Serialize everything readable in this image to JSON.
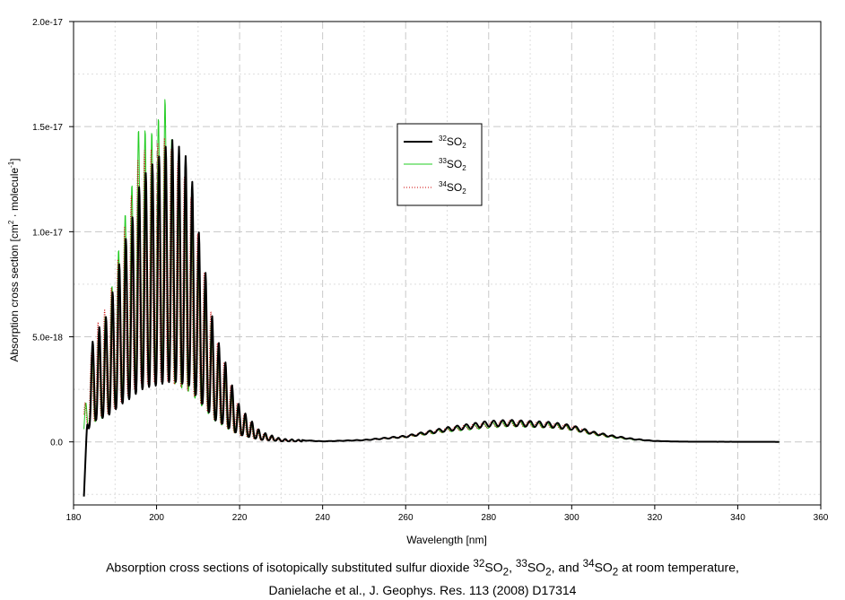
{
  "chart_data": {
    "type": "line",
    "xlabel": "Wavelength [nm]",
    "ylabel": {
      "text_before": "Absorption cross section [cm",
      "sup1": "2",
      "text_mid": " · molecule",
      "sup2": "-1",
      "text_after": "]"
    },
    "xlim": [
      180,
      360
    ],
    "ylim": [
      -3e-18,
      2e-17
    ],
    "x_ticks": [
      "180",
      "200",
      "220",
      "240",
      "260",
      "280",
      "300",
      "320",
      "340",
      "360"
    ],
    "x_tick_values": [
      180,
      200,
      220,
      240,
      260,
      280,
      300,
      320,
      340,
      360
    ],
    "y_ticks": [
      "0.0",
      "5.0e-18",
      "1.0e-17",
      "1.5e-17",
      "2.0e-17"
    ],
    "y_tick_values": [
      0,
      5e-18,
      1e-17,
      1.5e-17,
      2e-17
    ],
    "grid": true,
    "legend_position": "center-top",
    "series": [
      {
        "sup": "32",
        "base": "SO",
        "sub": "2",
        "color": "#000000",
        "style": "solid",
        "width": 2,
        "envelope": {
          "x": [
            182.5,
            184,
            186,
            188,
            190,
            192,
            194,
            196,
            198,
            200,
            202,
            204,
            206,
            208,
            210,
            212,
            214,
            216,
            218,
            220,
            222,
            225,
            230,
            240,
            250,
            260,
            270,
            280,
            285,
            290,
            295,
            300,
            305,
            310,
            315,
            320,
            325,
            330,
            340,
            350
          ],
          "y": [
            -2.6e-18,
            4.5e-18,
            5.4e-18,
            6e-18,
            7.6e-18,
            9.3e-18,
            1.05e-17,
            1.23e-17,
            1.3e-17,
            1.34e-17,
            1.4e-17,
            1.44e-17,
            1.39e-17,
            1.33e-17,
            1.02e-17,
            7.8e-18,
            5.2e-18,
            4.2e-18,
            2.8e-18,
            1.7e-18,
            1.2e-18,
            5e-19,
            1.5e-19,
            3e-20,
            1e-19,
            3e-19,
            7e-19,
            1e-18,
            1.05e-18,
            1e-18,
            9.5e-19,
            8e-19,
            5e-19,
            3e-19,
            1.5e-19,
            5e-20,
            2e-20,
            1e-20,
            5e-21,
            0
          ]
        }
      },
      {
        "sup": "33",
        "base": "SO",
        "sub": "2",
        "color": "#22cc22",
        "style": "solid",
        "width": 1,
        "envelope": {
          "x": [
            182.5,
            184,
            186,
            188,
            190,
            192,
            194,
            196,
            198,
            200,
            202,
            204,
            206,
            208,
            210,
            212,
            214,
            216,
            218,
            220,
            222,
            225,
            230,
            240,
            250,
            260,
            270,
            280,
            285,
            290,
            295,
            300,
            305,
            310,
            315,
            320,
            325,
            330,
            340,
            350
          ],
          "y": [
            1e-18,
            4.2e-18,
            5.2e-18,
            6.2e-18,
            8.2e-18,
            1.05e-17,
            1.22e-17,
            1.55e-17,
            1.45e-17,
            1.52e-17,
            1.64e-17,
            1.4e-17,
            1.28e-17,
            1.18e-17,
            9.5e-18,
            7.2e-18,
            5e-18,
            3.8e-18,
            2.5e-18,
            1.6e-18,
            1.1e-18,
            4.5e-19,
            1.4e-19,
            3e-20,
            1e-19,
            2.8e-19,
            6.5e-19,
            9e-19,
            1e-18,
            9.5e-19,
            9e-19,
            7.5e-19,
            4.5e-19,
            2.5e-19,
            1.2e-19,
            4e-20,
            2e-20,
            1e-20,
            5e-21,
            0
          ]
        }
      },
      {
        "sup": "34",
        "base": "SO",
        "sub": "2",
        "color": "#cc0000",
        "style": "dotted",
        "width": 1,
        "envelope": {
          "x": [
            182.5,
            184,
            186,
            188,
            190,
            192,
            194,
            196,
            198,
            200,
            202,
            204,
            206,
            208,
            210,
            212,
            214,
            216,
            218,
            220,
            222,
            225,
            230,
            240,
            250,
            260,
            270,
            280,
            285,
            290,
            295,
            300,
            305,
            310,
            315,
            320,
            325,
            330,
            340,
            350
          ],
          "y": [
            1.5e-18,
            4e-18,
            5.8e-18,
            6.5e-18,
            8e-18,
            1e-17,
            1.18e-17,
            1.4e-17,
            1.38e-17,
            1.42e-17,
            1.45e-17,
            1.38e-17,
            1.3e-17,
            1.2e-17,
            9.8e-18,
            7.5e-18,
            5.1e-18,
            4e-18,
            2.6e-18,
            1.6e-18,
            1.1e-18,
            4.5e-19,
            1.4e-19,
            3e-20,
            1e-19,
            2.9e-19,
            6.8e-19,
            9.5e-19,
            1.02e-18,
            9.8e-19,
            9.2e-19,
            7.8e-19,
            4.8e-19,
            2.8e-19,
            1.4e-19,
            5e-20,
            2e-20,
            1e-20,
            5e-21,
            0
          ]
        }
      }
    ]
  },
  "caption": {
    "line1_a": "Absorption cross sections of isotopically substituted sulfur dioxide ",
    "iso1_sup": "32",
    "iso1": "SO",
    "iso1_sub": "2",
    "sep1": ", ",
    "iso2_sup": "33",
    "iso2": "SO",
    "iso2_sub": "2",
    "sep2": ", and ",
    "iso3_sup": "34",
    "iso3": "SO",
    "iso3_sub": "2",
    "line1_b": " at room temperature,",
    "line2": "Danielache et al., J. Geophys. Res. 113 (2008) D17314"
  }
}
